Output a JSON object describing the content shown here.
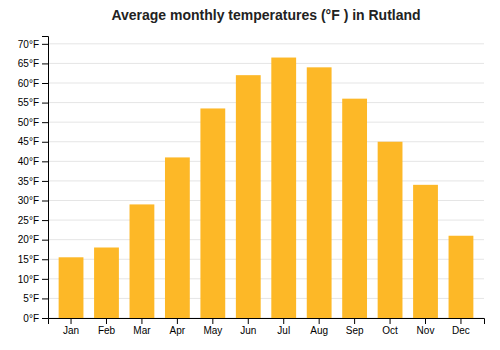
{
  "chart_data": {
    "type": "bar",
    "title": "Average monthly temperatures (°F ) in Rutland",
    "categories": [
      "Jan",
      "Feb",
      "Mar",
      "Apr",
      "May",
      "Jun",
      "Jul",
      "Aug",
      "Sep",
      "Oct",
      "Nov",
      "Dec"
    ],
    "values": [
      15.5,
      18.0,
      29.0,
      41.0,
      53.5,
      62.0,
      66.5,
      64.0,
      56.0,
      45.0,
      34.0,
      21.0
    ],
    "color": "#FDB827",
    "ylim": [
      0,
      72
    ],
    "yticks": [
      {
        "value": 0,
        "label": "0°F"
      },
      {
        "value": 5,
        "label": "5°F"
      },
      {
        "value": 10,
        "label": "10°F"
      },
      {
        "value": 15,
        "label": "15°F"
      },
      {
        "value": 20,
        "label": "20°F"
      },
      {
        "value": 25,
        "label": "25°F"
      },
      {
        "value": 30,
        "label": "30°F"
      },
      {
        "value": 35,
        "label": "35°F"
      },
      {
        "value": 40,
        "label": "40°F"
      },
      {
        "value": 45,
        "label": "45°F"
      },
      {
        "value": 50,
        "label": "50°F"
      },
      {
        "value": 55,
        "label": "55°F"
      },
      {
        "value": 60,
        "label": "60°F"
      },
      {
        "value": 65,
        "label": "65°F"
      },
      {
        "value": 70,
        "label": "70°F"
      }
    ],
    "grid": true
  }
}
